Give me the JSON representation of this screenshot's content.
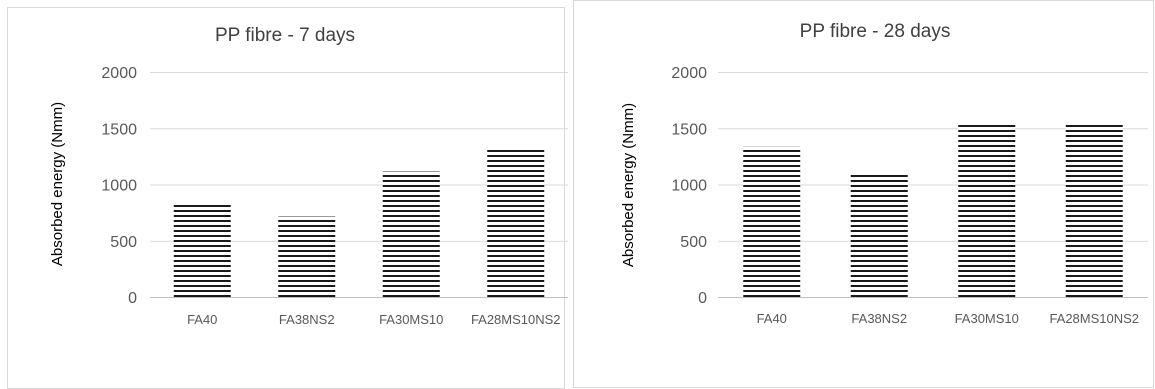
{
  "chart_data": [
    {
      "type": "bar",
      "title": "PP fibre - 7 days",
      "xlabel": "",
      "ylabel": "Absorbed energy (Nmm)",
      "categories": [
        "FA40",
        "FA38NS2",
        "FA30MS10",
        "FA28MS10NS2"
      ],
      "values": [
        835,
        715,
        1115,
        1310
      ],
      "ylim": [
        0,
        2000
      ],
      "yticks": [
        "0",
        "500",
        "1000",
        "1500",
        "2000"
      ],
      "grid": true,
      "legend": "none"
    },
    {
      "type": "bar",
      "title": "PP fibre - 28 days",
      "xlabel": "",
      "ylabel": "Absorbed energy  (Nmm)",
      "categories": [
        "FA40",
        "FA38NS2",
        "FA30MS10",
        "FA28MS10NS2"
      ],
      "values": [
        1335,
        1095,
        1535,
        1535
      ],
      "ylim": [
        0,
        2000
      ],
      "yticks": [
        "0",
        "500",
        "1000",
        "1500",
        "2000"
      ],
      "grid": true,
      "legend": "none"
    }
  ],
  "style": {
    "bar_hatch_color": "#1a1a1a",
    "grid_color": "#d9d9d9",
    "axis_color": "#bfbfbf",
    "text_color": "#595959",
    "title_color": "#404040",
    "border_color": "#d9d9d9"
  }
}
